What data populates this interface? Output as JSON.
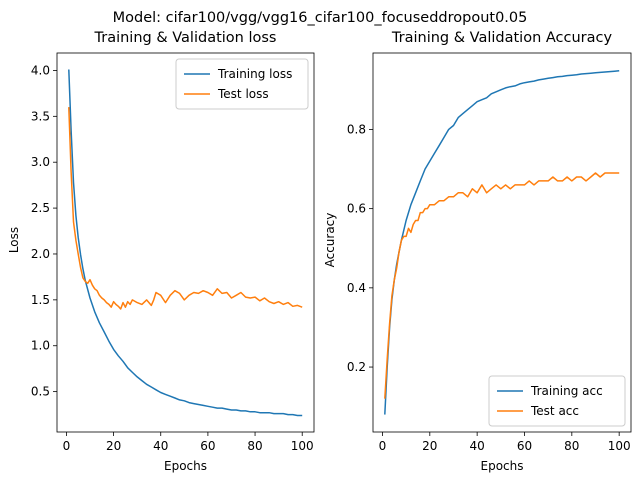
{
  "figure": {
    "suptitle": "Model: cifar100/vgg/vgg16_cifar100_focuseddropout0.05"
  },
  "chart_data": [
    {
      "type": "line",
      "title": "Training & Validation loss",
      "xlabel": "Epochs",
      "ylabel": "Loss",
      "xlim": [
        -4.0,
        105.0
      ],
      "ylim": [
        0.06,
        4.19
      ],
      "xticks": [
        0,
        20,
        40,
        60,
        80,
        100
      ],
      "yticks": [
        0.5,
        1.0,
        1.5,
        2.0,
        2.5,
        3.0,
        3.5,
        4.0
      ],
      "ytick_labels": [
        "0.5",
        "1.0",
        "1.5",
        "2.0",
        "2.5",
        "3.0",
        "3.5",
        "4.0"
      ],
      "legend_position": "upper right",
      "grid": false,
      "series": [
        {
          "name": "Training loss",
          "color": "#1f77b4",
          "x": [
            1,
            2,
            3,
            4,
            5,
            6,
            7,
            8,
            10,
            12,
            14,
            16,
            18,
            20,
            22,
            24,
            26,
            28,
            30,
            32,
            34,
            36,
            38,
            40,
            42,
            44,
            46,
            48,
            50,
            52,
            54,
            56,
            58,
            60,
            62,
            64,
            66,
            68,
            70,
            72,
            74,
            76,
            78,
            80,
            82,
            84,
            86,
            88,
            90,
            92,
            94,
            96,
            98,
            100
          ],
          "y": [
            4.01,
            3.35,
            2.78,
            2.42,
            2.18,
            1.99,
            1.84,
            1.71,
            1.52,
            1.37,
            1.25,
            1.15,
            1.05,
            0.96,
            0.89,
            0.83,
            0.76,
            0.71,
            0.66,
            0.62,
            0.58,
            0.55,
            0.52,
            0.49,
            0.47,
            0.45,
            0.43,
            0.41,
            0.4,
            0.38,
            0.37,
            0.36,
            0.35,
            0.34,
            0.33,
            0.32,
            0.32,
            0.31,
            0.3,
            0.3,
            0.29,
            0.29,
            0.28,
            0.28,
            0.27,
            0.27,
            0.27,
            0.26,
            0.26,
            0.26,
            0.25,
            0.25,
            0.24,
            0.24
          ]
        },
        {
          "name": "Test loss",
          "color": "#ff7f0e",
          "x": [
            1,
            2,
            3,
            4,
            5,
            6,
            7,
            8,
            9,
            10,
            11,
            12,
            13,
            14,
            15,
            16,
            17,
            18,
            19,
            20,
            21,
            22,
            23,
            24,
            25,
            26,
            27,
            28,
            30,
            32,
            34,
            36,
            37,
            38,
            40,
            42,
            44,
            46,
            48,
            50,
            52,
            54,
            56,
            58,
            60,
            62,
            64,
            66,
            68,
            70,
            72,
            74,
            76,
            78,
            80,
            82,
            84,
            86,
            88,
            90,
            92,
            94,
            96,
            98,
            100
          ],
          "y": [
            3.6,
            2.9,
            2.35,
            2.15,
            2.0,
            1.85,
            1.74,
            1.7,
            1.68,
            1.72,
            1.66,
            1.62,
            1.6,
            1.55,
            1.52,
            1.5,
            1.47,
            1.45,
            1.42,
            1.48,
            1.45,
            1.43,
            1.4,
            1.47,
            1.42,
            1.48,
            1.45,
            1.5,
            1.47,
            1.45,
            1.5,
            1.44,
            1.5,
            1.58,
            1.55,
            1.47,
            1.55,
            1.6,
            1.57,
            1.5,
            1.55,
            1.58,
            1.57,
            1.6,
            1.58,
            1.55,
            1.62,
            1.57,
            1.58,
            1.52,
            1.55,
            1.58,
            1.53,
            1.52,
            1.53,
            1.49,
            1.52,
            1.48,
            1.46,
            1.48,
            1.45,
            1.47,
            1.43,
            1.44,
            1.42
          ]
        }
      ]
    },
    {
      "type": "line",
      "title": "Training & Validation Accuracy",
      "xlabel": "Epochs",
      "ylabel": "Accuracy",
      "xlim": [
        -4.0,
        105.0
      ],
      "ylim": [
        0.036,
        0.993
      ],
      "xticks": [
        0,
        20,
        40,
        60,
        80,
        100
      ],
      "yticks": [
        0.2,
        0.4,
        0.6,
        0.8
      ],
      "ytick_labels": [
        "0.2",
        "0.4",
        "0.6",
        "0.8"
      ],
      "legend_position": "lower right",
      "grid": false,
      "series": [
        {
          "name": "Training acc",
          "color": "#1f77b4",
          "x": [
            1,
            2,
            3,
            4,
            5,
            6,
            7,
            8,
            10,
            12,
            14,
            16,
            18,
            20,
            22,
            24,
            26,
            28,
            30,
            32,
            34,
            36,
            38,
            40,
            42,
            44,
            46,
            48,
            50,
            52,
            54,
            56,
            58,
            60,
            62,
            64,
            66,
            68,
            70,
            72,
            74,
            76,
            78,
            80,
            82,
            84,
            86,
            88,
            90,
            92,
            94,
            96,
            98,
            100
          ],
          "y": [
            0.08,
            0.2,
            0.3,
            0.37,
            0.42,
            0.46,
            0.49,
            0.52,
            0.57,
            0.61,
            0.64,
            0.67,
            0.7,
            0.72,
            0.74,
            0.76,
            0.78,
            0.8,
            0.81,
            0.83,
            0.84,
            0.85,
            0.86,
            0.87,
            0.875,
            0.88,
            0.89,
            0.895,
            0.9,
            0.905,
            0.908,
            0.91,
            0.915,
            0.918,
            0.92,
            0.922,
            0.925,
            0.927,
            0.929,
            0.931,
            0.933,
            0.934,
            0.936,
            0.937,
            0.938,
            0.94,
            0.941,
            0.942,
            0.943,
            0.944,
            0.945,
            0.946,
            0.947,
            0.948
          ]
        },
        {
          "name": "Test acc",
          "color": "#ff7f0e",
          "x": [
            1,
            2,
            3,
            4,
            5,
            6,
            7,
            8,
            9,
            10,
            11,
            12,
            13,
            14,
            15,
            16,
            17,
            18,
            19,
            20,
            22,
            24,
            26,
            28,
            30,
            32,
            34,
            36,
            38,
            40,
            42,
            44,
            46,
            48,
            50,
            52,
            54,
            56,
            58,
            60,
            62,
            64,
            66,
            68,
            70,
            72,
            74,
            76,
            78,
            80,
            82,
            84,
            86,
            88,
            90,
            92,
            94,
            96,
            98,
            100
          ],
          "y": [
            0.12,
            0.22,
            0.31,
            0.38,
            0.42,
            0.45,
            0.49,
            0.52,
            0.53,
            0.53,
            0.55,
            0.54,
            0.56,
            0.57,
            0.57,
            0.59,
            0.59,
            0.6,
            0.6,
            0.61,
            0.61,
            0.62,
            0.62,
            0.63,
            0.63,
            0.64,
            0.64,
            0.63,
            0.65,
            0.64,
            0.66,
            0.64,
            0.65,
            0.66,
            0.65,
            0.66,
            0.65,
            0.66,
            0.66,
            0.66,
            0.67,
            0.66,
            0.67,
            0.67,
            0.67,
            0.68,
            0.67,
            0.67,
            0.68,
            0.67,
            0.68,
            0.68,
            0.67,
            0.68,
            0.69,
            0.68,
            0.69,
            0.69,
            0.69,
            0.69
          ]
        }
      ]
    }
  ]
}
